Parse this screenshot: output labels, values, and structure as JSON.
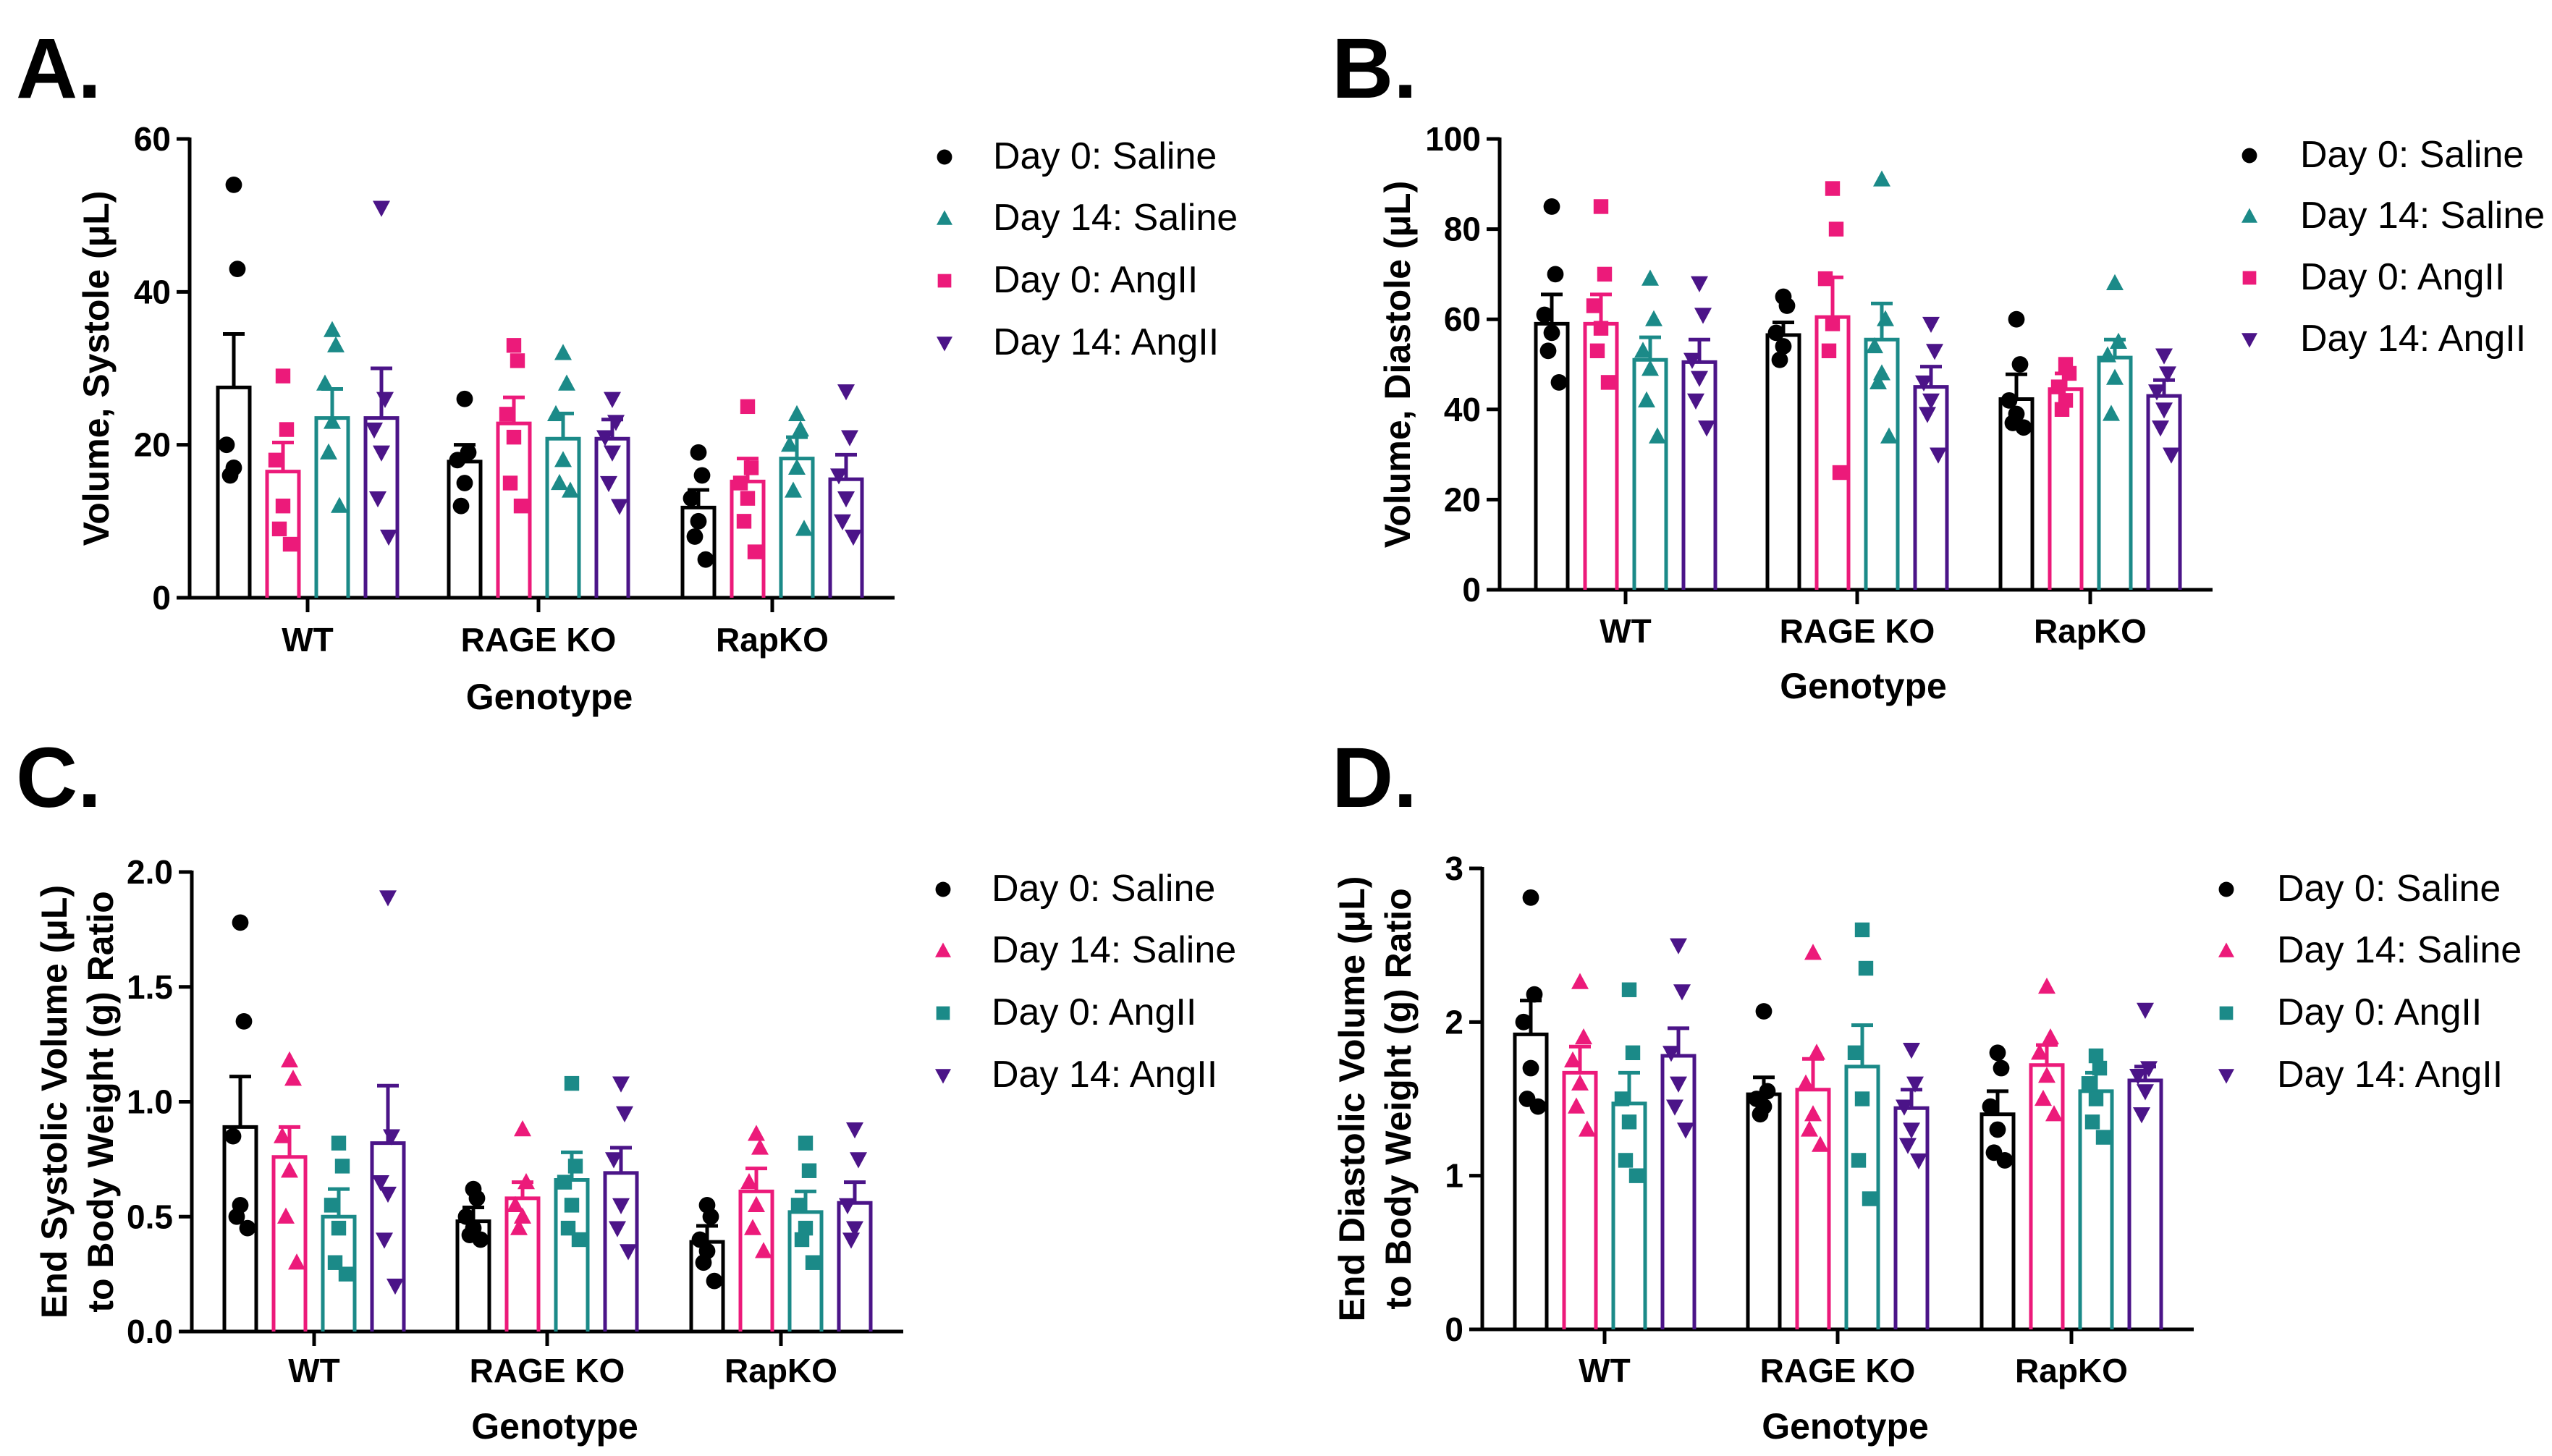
{
  "colors": {
    "day0_saline": "#000000",
    "pink": "#ec1a7a",
    "teal": "#1b8a88",
    "purple": "#4b1488"
  },
  "chart_data": [
    {
      "panel": "A.",
      "type": "bar",
      "xlabel": "Genotype",
      "ylabel": "Volume, Systole (μL)",
      "ylabel_lines": [
        "Volume, Systole (μL)"
      ],
      "ylim": [
        0,
        60
      ],
      "yticks": [
        0,
        20,
        40,
        60
      ],
      "ytick_labels": [
        "0",
        "20",
        "40",
        "60"
      ],
      "categories": [
        "WT",
        "RAGE KO",
        "RapKO"
      ],
      "legend": [
        {
          "label": "Day 0: Saline",
          "marker": "circle",
          "color": "#000000"
        },
        {
          "label": "Day 14: Saline",
          "marker": "triangle",
          "color": "#1b8a88"
        },
        {
          "label": "Day 0: AngII",
          "marker": "square",
          "color": "#ec1a7a"
        },
        {
          "label": "Day 14: AngII",
          "marker": "triangle-down",
          "color": "#4b1488"
        }
      ],
      "series": [
        {
          "name": "Day 0: Saline",
          "marker": "circle",
          "color": "#000000",
          "means": [
            27.5,
            17.8,
            11.8
          ],
          "sem": [
            7.0,
            2.2,
            2.3
          ],
          "points": [
            [
              54,
              43,
              20,
              17,
              16
            ],
            [
              26,
              19,
              18,
              15,
              12
            ],
            [
              19,
              16,
              13,
              10,
              8,
              5
            ]
          ]
        },
        {
          "name": "Day 0: AngII",
          "marker": "square",
          "color": "#ec1a7a",
          "means": [
            16.5,
            22.8,
            15.2
          ],
          "sem": [
            3.8,
            3.4,
            3.0
          ],
          "points": [
            [
              29,
              22,
              18,
              12,
              9,
              7
            ],
            [
              33,
              31,
              24,
              21,
              15,
              12
            ],
            [
              25,
              17,
              15,
              13,
              10,
              6
            ]
          ]
        },
        {
          "name": "Day 14: Saline",
          "marker": "triangle",
          "color": "#1b8a88",
          "means": [
            23.5,
            20.8,
            18.2
          ],
          "sem": [
            3.8,
            3.3,
            2.8
          ],
          "points": [
            [
              35,
              33,
              28,
              23,
              19,
              12
            ],
            [
              32,
              28,
              24,
              18,
              15,
              14
            ],
            [
              24,
              22,
              20,
              17,
              14,
              9
            ]
          ]
        },
        {
          "name": "Day 14: AngII",
          "marker": "triangle-down",
          "color": "#4b1488",
          "means": [
            23.5,
            20.8,
            15.5
          ],
          "sem": [
            6.5,
            2.5,
            3.2
          ],
          "points": [
            [
              51,
              26,
              22,
              19,
              13,
              8
            ],
            [
              26,
              23,
              21,
              19,
              15,
              12
            ],
            [
              27,
              21,
              16,
              13,
              10,
              8
            ]
          ]
        }
      ]
    },
    {
      "panel": "B.",
      "type": "bar",
      "xlabel": "Genotype",
      "ylabel": "Volume, Diastole (μL)",
      "ylabel_lines": [
        "Volume, Diastole (μL)"
      ],
      "ylim": [
        0,
        100
      ],
      "yticks": [
        0,
        20,
        40,
        60,
        80,
        100
      ],
      "ytick_labels": [
        "0",
        "20",
        "40",
        "60",
        "80",
        "100"
      ],
      "categories": [
        "WT",
        "RAGE KO",
        "RapKO"
      ],
      "legend": [
        {
          "label": "Day 0: Saline",
          "marker": "circle",
          "color": "#000000"
        },
        {
          "label": "Day 14: Saline",
          "marker": "triangle",
          "color": "#1b8a88"
        },
        {
          "label": "Day 0: AngII",
          "marker": "square",
          "color": "#ec1a7a"
        },
        {
          "label": "Day 14: AngII",
          "marker": "triangle-down",
          "color": "#4b1488"
        }
      ],
      "series": [
        {
          "name": "Day 0: Saline",
          "marker": "circle",
          "color": "#000000",
          "means": [
            59,
            56.5,
            42.3
          ],
          "sem": [
            6.5,
            2.8,
            5.5
          ],
          "points": [
            [
              85,
              70,
              61,
              57,
              53,
              46
            ],
            [
              65,
              63,
              57,
              54,
              51
            ],
            [
              60,
              50,
              42,
              39,
              37,
              36
            ]
          ]
        },
        {
          "name": "Day 0: AngII",
          "marker": "square",
          "color": "#ec1a7a",
          "means": [
            59,
            60.5,
            44.5
          ],
          "sem": [
            6.5,
            8.8,
            3.5
          ],
          "points": [
            [
              85,
              70,
              63,
              58,
              53,
              46
            ],
            [
              89,
              80,
              69,
              59,
              53,
              26
            ],
            [
              50,
              48,
              45,
              42,
              40
            ]
          ]
        },
        {
          "name": "Day 14: Saline",
          "marker": "triangle",
          "color": "#1b8a88",
          "means": [
            51,
            55.5,
            51.5
          ],
          "sem": [
            5.0,
            8.0,
            4.0
          ],
          "points": [
            [
              69,
              60,
              53,
              49,
              42,
              34
            ],
            [
              91,
              60,
              54,
              48,
              46,
              34
            ],
            [
              68,
              55,
              52,
              47,
              39
            ]
          ]
        },
        {
          "name": "Day 14: AngII",
          "marker": "triangle-down",
          "color": "#4b1488",
          "means": [
            50.5,
            45,
            43
          ],
          "sem": [
            5.0,
            4.5,
            3.5
          ],
          "points": [
            [
              68,
              61,
              51,
              47,
              42,
              36
            ],
            [
              59,
              53,
              46,
              42,
              39,
              30
            ],
            [
              52,
              48,
              44,
              40,
              36,
              30
            ]
          ]
        }
      ]
    },
    {
      "panel": "C.",
      "type": "bar",
      "xlabel": "Genotype",
      "ylabel": "End Systolic Volume (μL) to Body Weight (g) Ratio",
      "ylabel_lines": [
        "End Systolic Volume (μL)",
        "to Body Weight (g) Ratio"
      ],
      "ylim": [
        0,
        2.0
      ],
      "yticks": [
        0,
        0.5,
        1.0,
        1.5,
        2.0
      ],
      "ytick_labels": [
        "0.0",
        "0.5",
        "1.0",
        "1.5",
        "2.0"
      ],
      "categories": [
        "WT",
        "RAGE KO",
        "RapKO"
      ],
      "legend": [
        {
          "label": "Day 0: Saline",
          "marker": "circle",
          "color": "#000000"
        },
        {
          "label": "Day 14: Saline",
          "marker": "triangle",
          "color": "#ec1a7a"
        },
        {
          "label": "Day 0: AngII",
          "marker": "square",
          "color": "#1b8a88"
        },
        {
          "label": "Day 14: AngII",
          "marker": "triangle-down",
          "color": "#4b1488"
        }
      ],
      "series": [
        {
          "name": "Day 0: Saline",
          "marker": "circle",
          "color": "#000000",
          "means": [
            0.89,
            0.48,
            0.39
          ],
          "sem": [
            0.22,
            0.06,
            0.07
          ],
          "points": [
            [
              1.78,
              1.35,
              0.85,
              0.55,
              0.5,
              0.45
            ],
            [
              0.62,
              0.58,
              0.5,
              0.45,
              0.42,
              0.4
            ],
            [
              0.55,
              0.5,
              0.4,
              0.35,
              0.3,
              0.22
            ]
          ]
        },
        {
          "name": "Day 14: Saline",
          "marker": "triangle",
          "color": "#ec1a7a",
          "means": [
            0.76,
            0.58,
            0.61
          ],
          "sem": [
            0.13,
            0.07,
            0.1
          ],
          "points": [
            [
              1.18,
              1.1,
              0.85,
              0.7,
              0.5,
              0.3
            ],
            [
              0.88,
              0.65,
              0.55,
              0.5,
              0.45
            ],
            [
              0.86,
              0.8,
              0.65,
              0.55,
              0.45,
              0.35
            ]
          ]
        },
        {
          "name": "Day 0: AngII",
          "marker": "square",
          "color": "#1b8a88",
          "means": [
            0.5,
            0.66,
            0.52
          ],
          "sem": [
            0.12,
            0.12,
            0.09
          ],
          "points": [
            [
              0.82,
              0.72,
              0.55,
              0.45,
              0.3,
              0.25
            ],
            [
              1.08,
              0.72,
              0.65,
              0.55,
              0.45,
              0.4
            ],
            [
              0.82,
              0.7,
              0.55,
              0.45,
              0.4,
              0.3
            ]
          ]
        },
        {
          "name": "Day 14: AngII",
          "marker": "triangle-down",
          "color": "#4b1488",
          "means": [
            0.82,
            0.69,
            0.56
          ],
          "sem": [
            0.25,
            0.11,
            0.09
          ],
          "points": [
            [
              1.89,
              0.85,
              0.65,
              0.6,
              0.4,
              0.2
            ],
            [
              1.08,
              0.95,
              0.75,
              0.55,
              0.45,
              0.35
            ],
            [
              0.88,
              0.75,
              0.55,
              0.45,
              0.4
            ]
          ]
        }
      ]
    },
    {
      "panel": "D.",
      "type": "bar",
      "xlabel": "Genotype",
      "ylabel": "End Diastolic Volume (μL) to Body Weight (g) Ratio",
      "ylabel_lines": [
        "End Diastolic Volume (μL)",
        "to Body Weight (g) Ratio"
      ],
      "ylim": [
        0,
        3
      ],
      "yticks": [
        0,
        1,
        2,
        3
      ],
      "ytick_labels": [
        "0",
        "1",
        "2",
        "3"
      ],
      "categories": [
        "WT",
        "RAGE KO",
        "RapKO"
      ],
      "legend": [
        {
          "label": "Day 0: Saline",
          "marker": "circle",
          "color": "#000000"
        },
        {
          "label": "Day 14: Saline",
          "marker": "triangle",
          "color": "#ec1a7a"
        },
        {
          "label": "Day 0: AngII",
          "marker": "square",
          "color": "#1b8a88"
        },
        {
          "label": "Day 14: AngII",
          "marker": "triangle-down",
          "color": "#4b1488"
        }
      ],
      "series": [
        {
          "name": "Day 0: Saline",
          "marker": "circle",
          "color": "#000000",
          "means": [
            1.92,
            1.53,
            1.4
          ],
          "sem": [
            0.22,
            0.11,
            0.15
          ],
          "points": [
            [
              2.81,
              2.18,
              2.0,
              1.7,
              1.5,
              1.45
            ],
            [
              2.07,
              1.55,
              1.5,
              1.45,
              1.4
            ],
            [
              1.8,
              1.7,
              1.45,
              1.3,
              1.15,
              1.1
            ]
          ]
        },
        {
          "name": "Day 14: Saline",
          "marker": "triangle",
          "color": "#ec1a7a",
          "means": [
            1.67,
            1.56,
            1.72
          ],
          "sem": [
            0.17,
            0.2,
            0.13
          ],
          "points": [
            [
              2.26,
              1.9,
              1.75,
              1.6,
              1.45,
              1.3
            ],
            [
              2.45,
              1.8,
              1.6,
              1.4,
              1.3,
              1.2
            ],
            [
              2.23,
              1.9,
              1.8,
              1.65,
              1.5,
              1.4
            ]
          ]
        },
        {
          "name": "Day 0: AngII",
          "marker": "square",
          "color": "#1b8a88",
          "means": [
            1.47,
            1.71,
            1.55
          ],
          "sem": [
            0.2,
            0.27,
            0.12
          ],
          "points": [
            [
              2.21,
              1.8,
              1.5,
              1.35,
              1.1,
              1.0
            ],
            [
              2.6,
              2.35,
              1.8,
              1.5,
              1.1,
              0.85
            ],
            [
              1.78,
              1.7,
              1.6,
              1.5,
              1.35,
              1.25
            ]
          ]
        },
        {
          "name": "Day 14: AngII",
          "marker": "triangle-down",
          "color": "#4b1488",
          "means": [
            1.78,
            1.44,
            1.62
          ],
          "sem": [
            0.18,
            0.12,
            0.09
          ],
          "points": [
            [
              2.5,
              2.2,
              1.8,
              1.6,
              1.45,
              1.3
            ],
            [
              1.82,
              1.6,
              1.45,
              1.3,
              1.2,
              1.1
            ],
            [
              2.08,
              1.7,
              1.65,
              1.55,
              1.4
            ]
          ]
        }
      ]
    }
  ]
}
